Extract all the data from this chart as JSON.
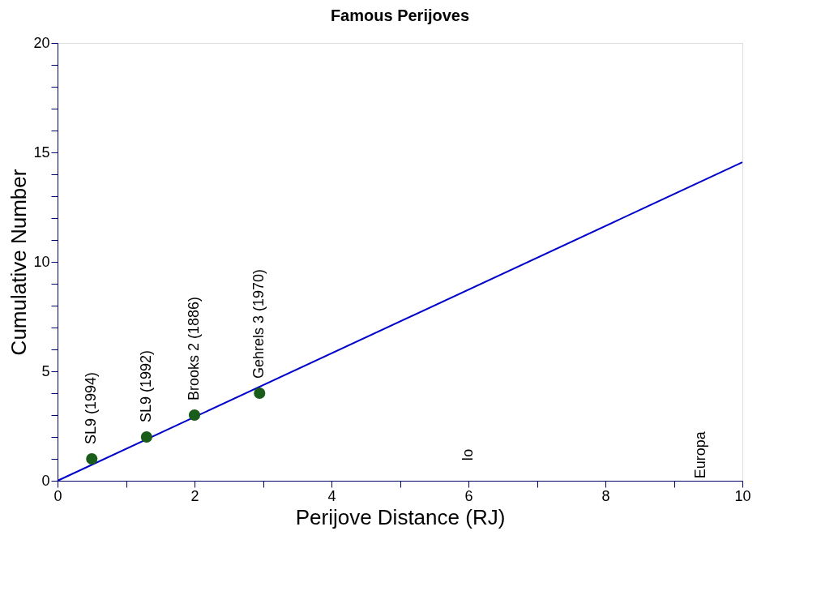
{
  "chart_data": {
    "type": "scatter",
    "title": "Famous Perijoves",
    "xlabel": "Perijove Distance (RJ)",
    "ylabel": "Cumulative Number",
    "series": [
      {
        "type": "line",
        "color": "#0000cc",
        "x": [
          0,
          10
        ],
        "values": [
          0,
          14.55
        ],
        "marker": "none"
      },
      {
        "color": "#1a5c1a",
        "x": [
          0.5,
          1.3,
          2,
          2.95
        ],
        "values": [
          1,
          2,
          3,
          4
        ],
        "marker": "circle"
      }
    ],
    "xlim": [
      0,
      10
    ],
    "ylim": [
      0,
      20
    ],
    "xticks": [
      0,
      {
        "value": 1,
        "label": null
      },
      2,
      {
        "value": 3,
        "label": null
      },
      4,
      {
        "value": 5,
        "label": null
      },
      6,
      {
        "value": 7,
        "label": null
      },
      8,
      {
        "value": 9,
        "label": null
      },
      10
    ],
    "yticks": [
      0,
      {
        "value": 1,
        "label": null
      },
      {
        "value": 2,
        "label": null
      },
      {
        "value": 3,
        "label": null
      },
      {
        "value": 4,
        "label": null
      },
      5,
      {
        "value": 6,
        "label": null
      },
      {
        "value": 7,
        "label": null
      },
      {
        "value": 8,
        "label": null
      },
      {
        "value": 9,
        "label": null
      },
      10,
      {
        "value": 11,
        "label": null
      },
      {
        "value": 12,
        "label": null
      },
      {
        "value": 13,
        "label": null
      },
      {
        "value": 14,
        "label": null
      },
      15,
      {
        "value": 16,
        "label": null
      },
      {
        "value": 17,
        "label": null
      },
      {
        "value": 18,
        "label": null
      },
      {
        "value": 19,
        "label": null
      },
      20
    ],
    "grid": false,
    "annotations": [
      {
        "text": "SL9 (1994)",
        "x": 0.5,
        "y": 1
      },
      {
        "text": "SL9 (1992)",
        "x": 1.3,
        "y": 2
      },
      {
        "text": "Brooks 2 (1886)",
        "x": 2,
        "y": 3
      },
      {
        "text": "Gehrels 3 (1970)",
        "x": 2.95,
        "y": 4
      },
      "Io",
      "Europa"
    ]
  }
}
